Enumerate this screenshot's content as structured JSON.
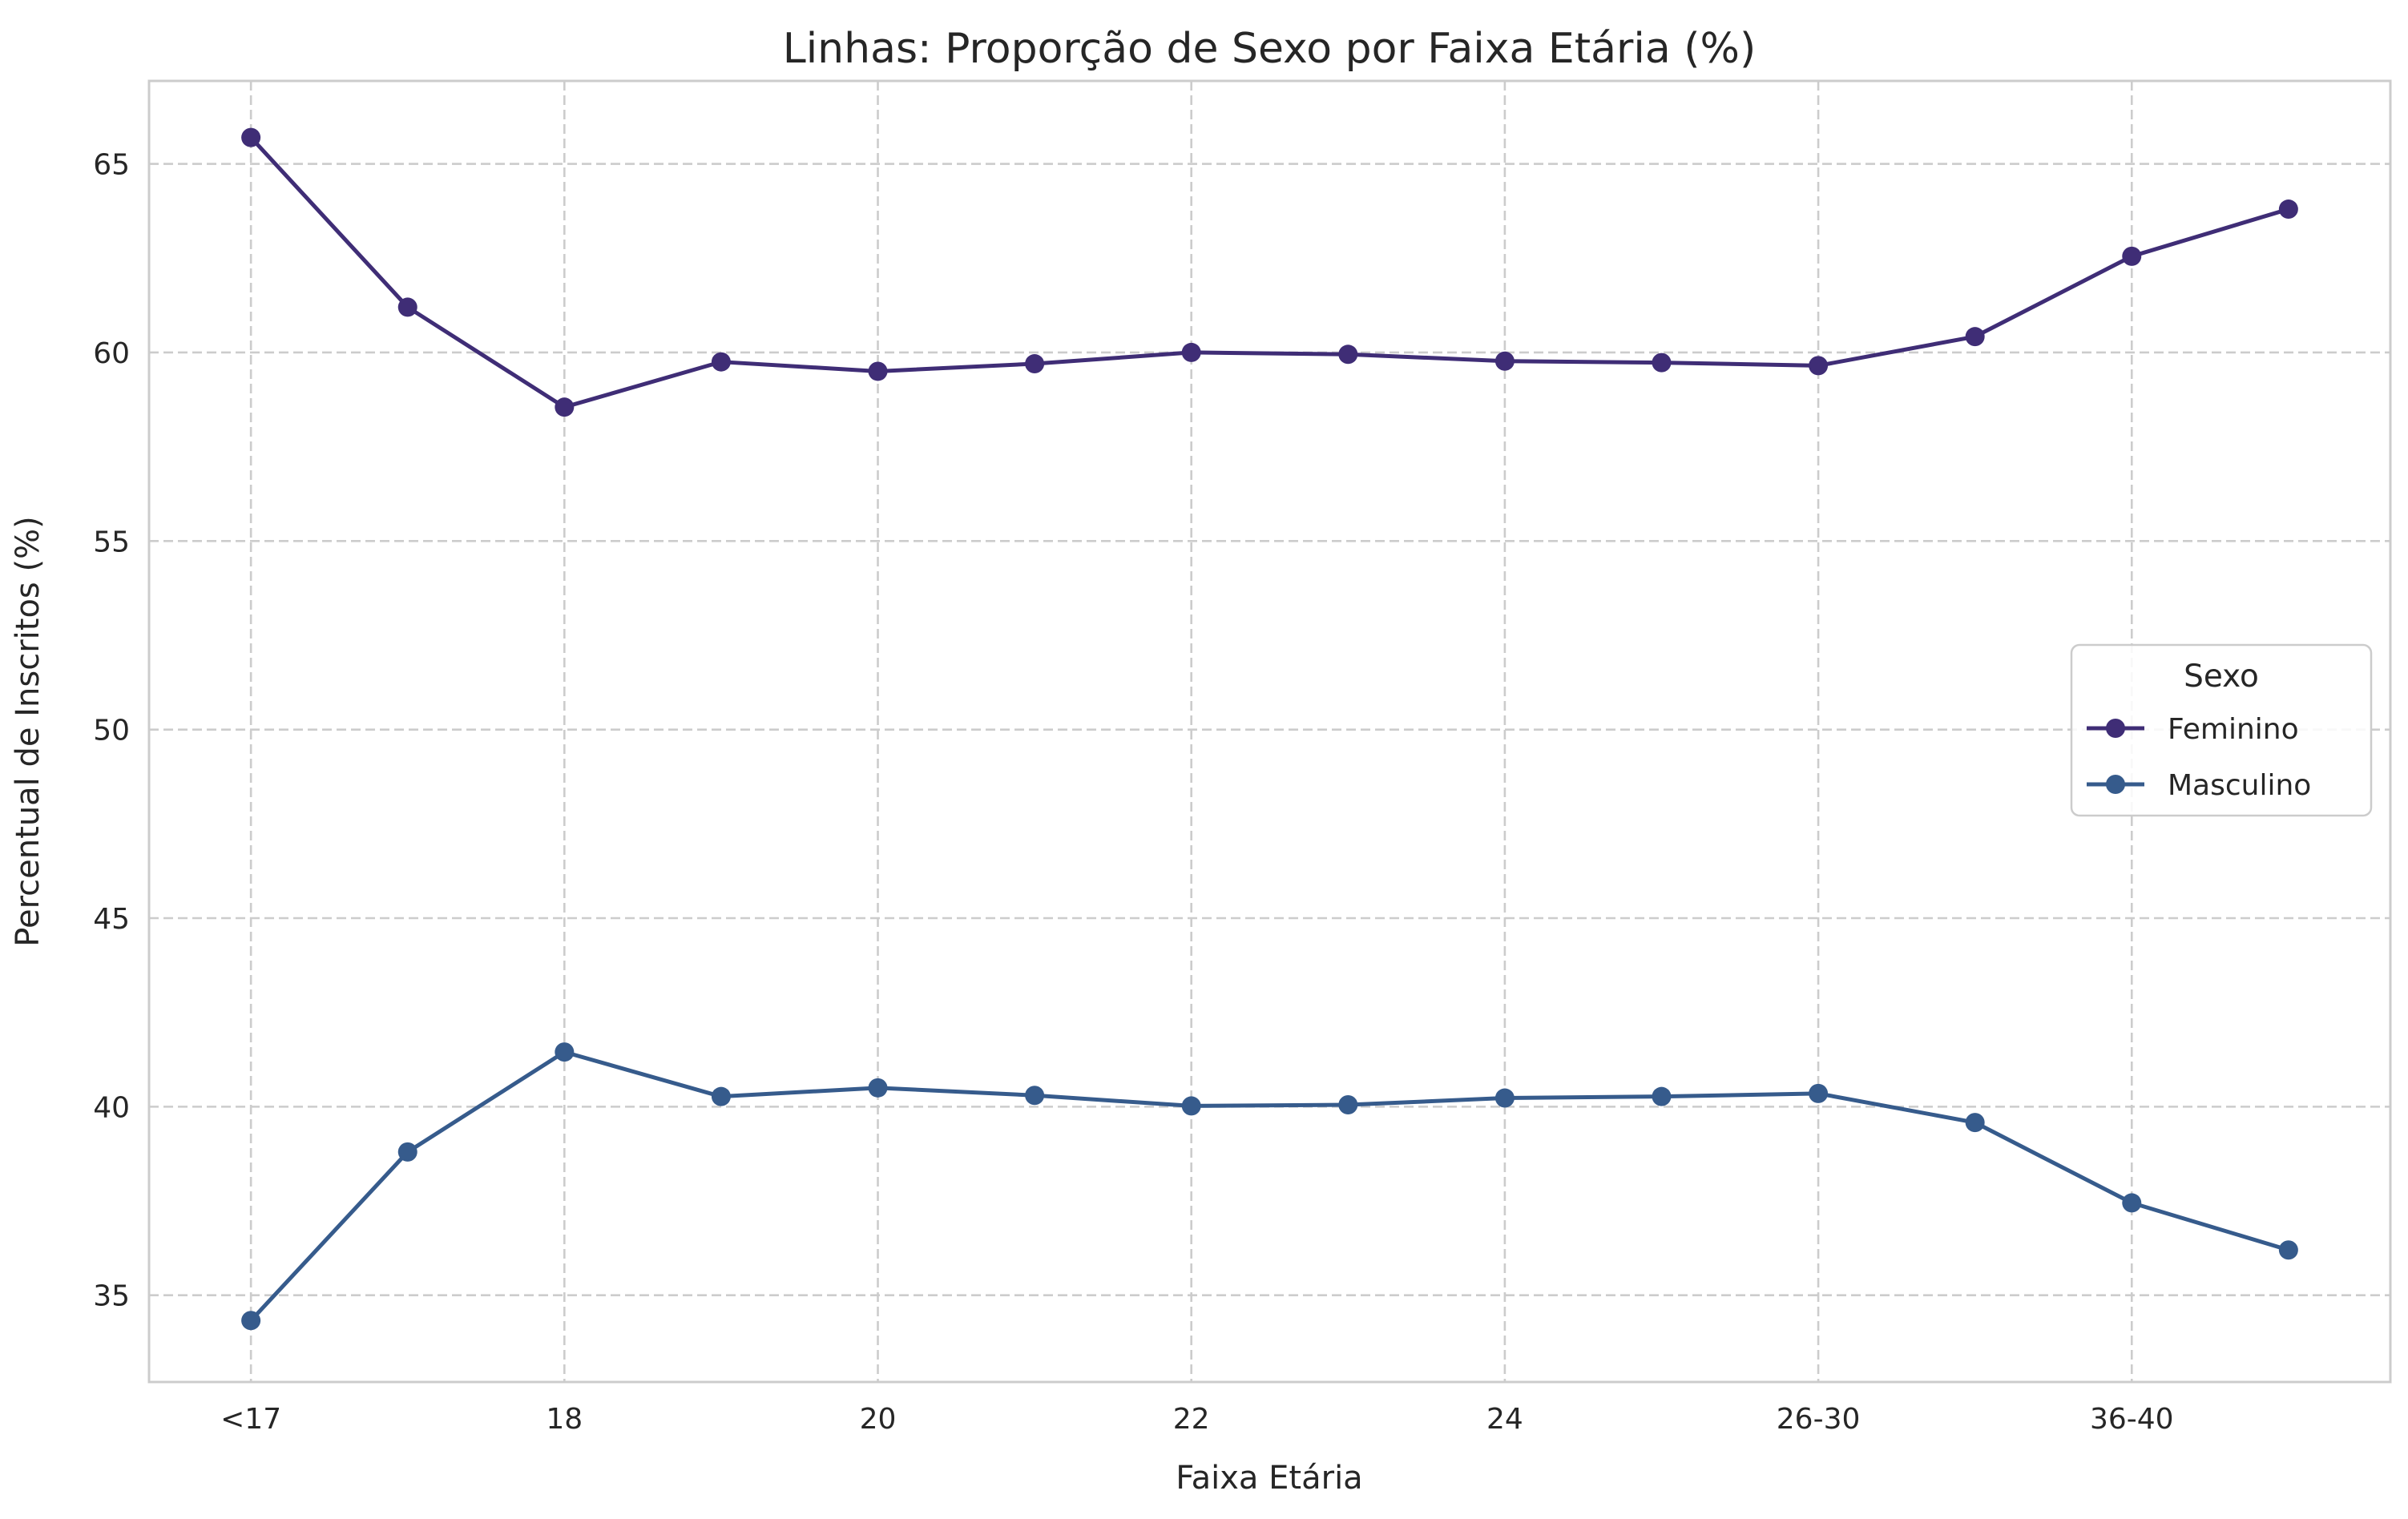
{
  "chart_data": {
    "type": "line",
    "title": "Linhas: Proporção de Sexo por Faixa Etária (%)",
    "xlabel": "Faixa Etária",
    "ylabel": "Percentual de Inscritos (%)",
    "x_tick_labels": [
      "<17",
      "18",
      "20",
      "22",
      "24",
      "26-30",
      "36-40"
    ],
    "x_tick_positions": [
      0,
      2,
      4,
      6,
      8,
      10,
      12
    ],
    "x": [
      0,
      1,
      2,
      3,
      4,
      5,
      6,
      7,
      8,
      9,
      10,
      11,
      12,
      13
    ],
    "xlim": [
      -0.65,
      13.65
    ],
    "ylim": [
      32.7,
      67.2
    ],
    "y_ticks": [
      35,
      40,
      45,
      50,
      55,
      60,
      65
    ],
    "grid": true,
    "legend": {
      "title": "Sexo",
      "placement": "center-right"
    },
    "series": [
      {
        "name": "Feminino",
        "color": "#3f2d76",
        "values": [
          65.7,
          61.2,
          58.55,
          59.75,
          59.5,
          59.7,
          60.0,
          59.95,
          59.77,
          59.73,
          59.65,
          60.42,
          62.55,
          63.8
        ]
      },
      {
        "name": "Masculino",
        "color": "#365b8c",
        "values": [
          34.33,
          38.8,
          41.45,
          40.27,
          40.5,
          40.3,
          40.02,
          40.05,
          40.23,
          40.27,
          40.35,
          39.58,
          37.45,
          36.2
        ]
      }
    ]
  }
}
